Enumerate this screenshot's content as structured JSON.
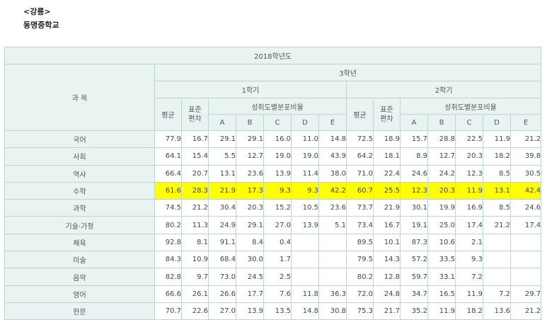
{
  "region": "<강릉>",
  "school": "동명중학교",
  "table": {
    "year": "2018학년도",
    "subject_header": "과 목",
    "grade": "3학년",
    "semesters": [
      {
        "label": "1학기",
        "avg": "평균",
        "std_dev_line1": "표준",
        "std_dev_line2": "편차",
        "dist_label": "성취도별분포비율",
        "levels": [
          "A",
          "B",
          "C",
          "D",
          "E"
        ]
      },
      {
        "label": "2학기",
        "avg": "평균",
        "std_dev_line1": "표준",
        "std_dev_line2": "편차",
        "dist_label": "성취도별분포비율",
        "levels": [
          "A",
          "B",
          "C",
          "D",
          "E"
        ]
      }
    ],
    "highlight_color": "#ffff00",
    "rows": [
      {
        "subject": "국어",
        "highlight": false,
        "s1": [
          "77.9",
          "16.7",
          "29.1",
          "29.1",
          "16.0",
          "11.0",
          "14.8"
        ],
        "s2": [
          "72.5",
          "18.9",
          "15.7",
          "28.8",
          "22.5",
          "11.9",
          "21.2"
        ]
      },
      {
        "subject": "사회",
        "highlight": false,
        "s1": [
          "64.1",
          "15.4",
          "5.5",
          "12.7",
          "19.0",
          "19.0",
          "43.9"
        ],
        "s2": [
          "64.2",
          "18.1",
          "8.9",
          "12.7",
          "20.3",
          "18.2",
          "39.8"
        ]
      },
      {
        "subject": "역사",
        "highlight": false,
        "s1": [
          "66.4",
          "20.7",
          "13.1",
          "23.6",
          "13.9",
          "11.4",
          "38.0"
        ],
        "s2": [
          "71.0",
          "22.4",
          "24.6",
          "24.2",
          "12.3",
          "8.5",
          "30.5"
        ]
      },
      {
        "subject": "수학",
        "highlight": true,
        "s1": [
          "61.6",
          "28.3",
          "21.9",
          "17.3",
          "9.3",
          "9.3",
          "42.2"
        ],
        "s2": [
          "60.7",
          "25.5",
          "12.3",
          "20.3",
          "11.9",
          "13.1",
          "42.4"
        ]
      },
      {
        "subject": "과학",
        "highlight": false,
        "s1": [
          "74.5",
          "21.2",
          "30.4",
          "20.3",
          "15.2",
          "10.5",
          "23.6"
        ],
        "s2": [
          "73.7",
          "21.9",
          "30.1",
          "19.9",
          "16.9",
          "8.5",
          "24.6"
        ]
      },
      {
        "subject": "기술·가정",
        "highlight": false,
        "s1": [
          "80.2",
          "11.3",
          "24.9",
          "29.1",
          "27.0",
          "13.9",
          "5.1"
        ],
        "s2": [
          "73.4",
          "16.7",
          "19.1",
          "25.0",
          "17.4",
          "21.2",
          "17.4"
        ]
      },
      {
        "subject": "체육",
        "highlight": false,
        "s1": [
          "92.8",
          "8.1",
          "91.1",
          "8.4",
          "0.4",
          "",
          ""
        ],
        "s2": [
          "89.5",
          "10.1",
          "87.3",
          "10.6",
          "2.1",
          "",
          ""
        ]
      },
      {
        "subject": "미술",
        "highlight": false,
        "s1": [
          "84.3",
          "10.9",
          "68.4",
          "30.0",
          "1.7",
          "",
          ""
        ],
        "s2": [
          "79.5",
          "14.3",
          "57.2",
          "33.5",
          "9.3",
          "",
          ""
        ]
      },
      {
        "subject": "음악",
        "highlight": false,
        "s1": [
          "82.8",
          "9.7",
          "73.0",
          "24.5",
          "2.5",
          "",
          ""
        ],
        "s2": [
          "80.2",
          "12.8",
          "59.7",
          "33.1",
          "7.2",
          "",
          ""
        ]
      },
      {
        "subject": "영어",
        "highlight": false,
        "s1": [
          "66.6",
          "26.1",
          "26.6",
          "17.7",
          "7.6",
          "11.8",
          "36.3"
        ],
        "s2": [
          "72.0",
          "24.8",
          "34.7",
          "16.5",
          "11.9",
          "7.2",
          "29.7"
        ]
      },
      {
        "subject": "한문",
        "highlight": false,
        "s1": [
          "70.7",
          "22.6",
          "27.0",
          "13.9",
          "13.5",
          "14.8",
          "30.8"
        ],
        "s2": [
          "75.3",
          "21.7",
          "35.2",
          "11.9",
          "18.2",
          "13.6",
          "21.2"
        ]
      }
    ]
  }
}
